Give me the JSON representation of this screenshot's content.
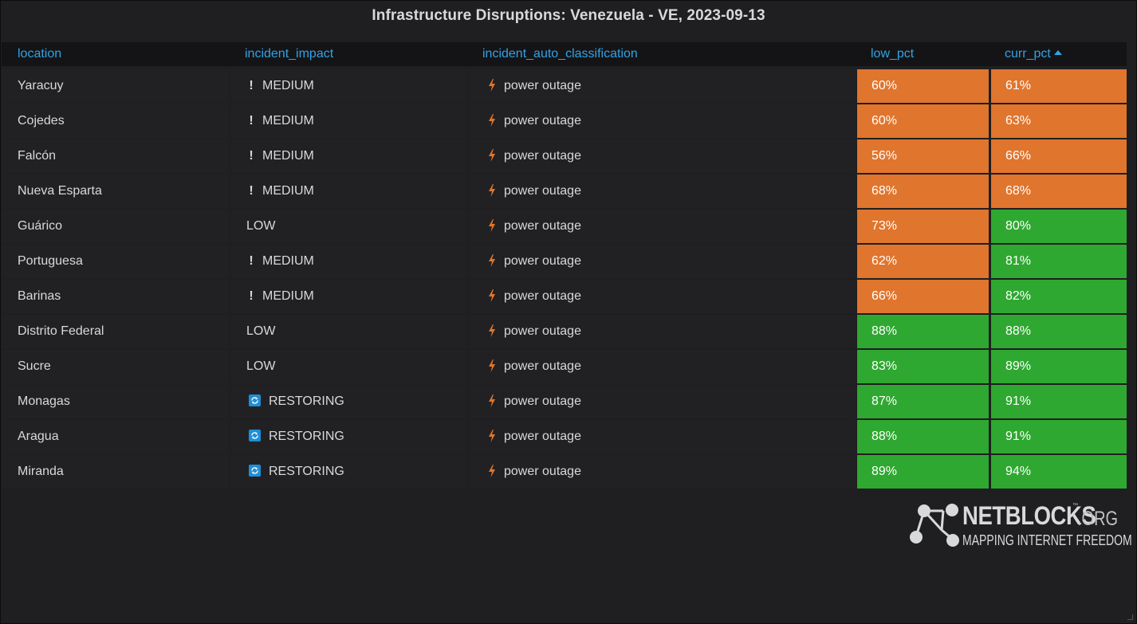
{
  "panel": {
    "title": "Infrastructure Disruptions: Venezuela - VE, 2023-09-13"
  },
  "table": {
    "columns": [
      {
        "key": "location",
        "label": "location"
      },
      {
        "key": "incident_impact",
        "label": "incident_impact"
      },
      {
        "key": "incident_auto_classification",
        "label": "incident_auto_classification"
      },
      {
        "key": "low_pct",
        "label": "low_pct"
      },
      {
        "key": "curr_pct",
        "label": "curr_pct",
        "sorted": "ascending"
      }
    ],
    "rows": [
      {
        "location": "Yaracuy",
        "impact": "MEDIUM",
        "impact_icon": "exclamation-icon",
        "classification": "power outage",
        "low_pct": "60%",
        "low_color": "#e0752d",
        "curr_pct": "61%",
        "curr_color": "#e0752d"
      },
      {
        "location": "Cojedes",
        "impact": "MEDIUM",
        "impact_icon": "exclamation-icon",
        "classification": "power outage",
        "low_pct": "60%",
        "low_color": "#e0752d",
        "curr_pct": "63%",
        "curr_color": "#e0752d"
      },
      {
        "location": "Falcón",
        "impact": "MEDIUM",
        "impact_icon": "exclamation-icon",
        "classification": "power outage",
        "low_pct": "56%",
        "low_color": "#e0752d",
        "curr_pct": "66%",
        "curr_color": "#e0752d"
      },
      {
        "location": "Nueva Esparta",
        "impact": "MEDIUM",
        "impact_icon": "exclamation-icon",
        "classification": "power outage",
        "low_pct": "68%",
        "low_color": "#e0752d",
        "curr_pct": "68%",
        "curr_color": "#e0752d"
      },
      {
        "location": "Guárico",
        "impact": "LOW",
        "impact_icon": "",
        "classification": "power outage",
        "low_pct": "73%",
        "low_color": "#e0752d",
        "curr_pct": "80%",
        "curr_color": "#2fa831"
      },
      {
        "location": "Portuguesa",
        "impact": "MEDIUM",
        "impact_icon": "exclamation-icon",
        "classification": "power outage",
        "low_pct": "62%",
        "low_color": "#e0752d",
        "curr_pct": "81%",
        "curr_color": "#2fa831"
      },
      {
        "location": "Barinas",
        "impact": "MEDIUM",
        "impact_icon": "exclamation-icon",
        "classification": "power outage",
        "low_pct": "66%",
        "low_color": "#e0752d",
        "curr_pct": "82%",
        "curr_color": "#2fa831"
      },
      {
        "location": "Distrito Federal",
        "impact": "LOW",
        "impact_icon": "",
        "classification": "power outage",
        "low_pct": "88%",
        "low_color": "#2fa831",
        "curr_pct": "88%",
        "curr_color": "#2fa831"
      },
      {
        "location": "Sucre",
        "impact": "LOW",
        "impact_icon": "",
        "classification": "power outage",
        "low_pct": "83%",
        "low_color": "#2fa831",
        "curr_pct": "89%",
        "curr_color": "#2fa831"
      },
      {
        "location": "Monagas",
        "impact": "RESTORING",
        "impact_icon": "restore-icon",
        "classification": "power outage",
        "low_pct": "87%",
        "low_color": "#2fa831",
        "curr_pct": "91%",
        "curr_color": "#2fa831"
      },
      {
        "location": "Aragua",
        "impact": "RESTORING",
        "impact_icon": "restore-icon",
        "classification": "power outage",
        "low_pct": "88%",
        "low_color": "#2fa831",
        "curr_pct": "91%",
        "curr_color": "#2fa831"
      },
      {
        "location": "Miranda",
        "impact": "RESTORING",
        "impact_icon": "restore-icon",
        "classification": "power outage",
        "low_pct": "89%",
        "low_color": "#2fa831",
        "curr_pct": "94%",
        "curr_color": "#2fa831"
      }
    ]
  },
  "colors": {
    "orange": "#e0752d",
    "green": "#2fa831",
    "header_text": "#33a2e5",
    "bolt": "#e0752d",
    "restore": "#1f8ed6"
  },
  "logo": {
    "name": "NETBLOCKS",
    "tm": "™",
    "suffix": ".ORG",
    "tagline": "MAPPING INTERNET FREEDOM"
  }
}
